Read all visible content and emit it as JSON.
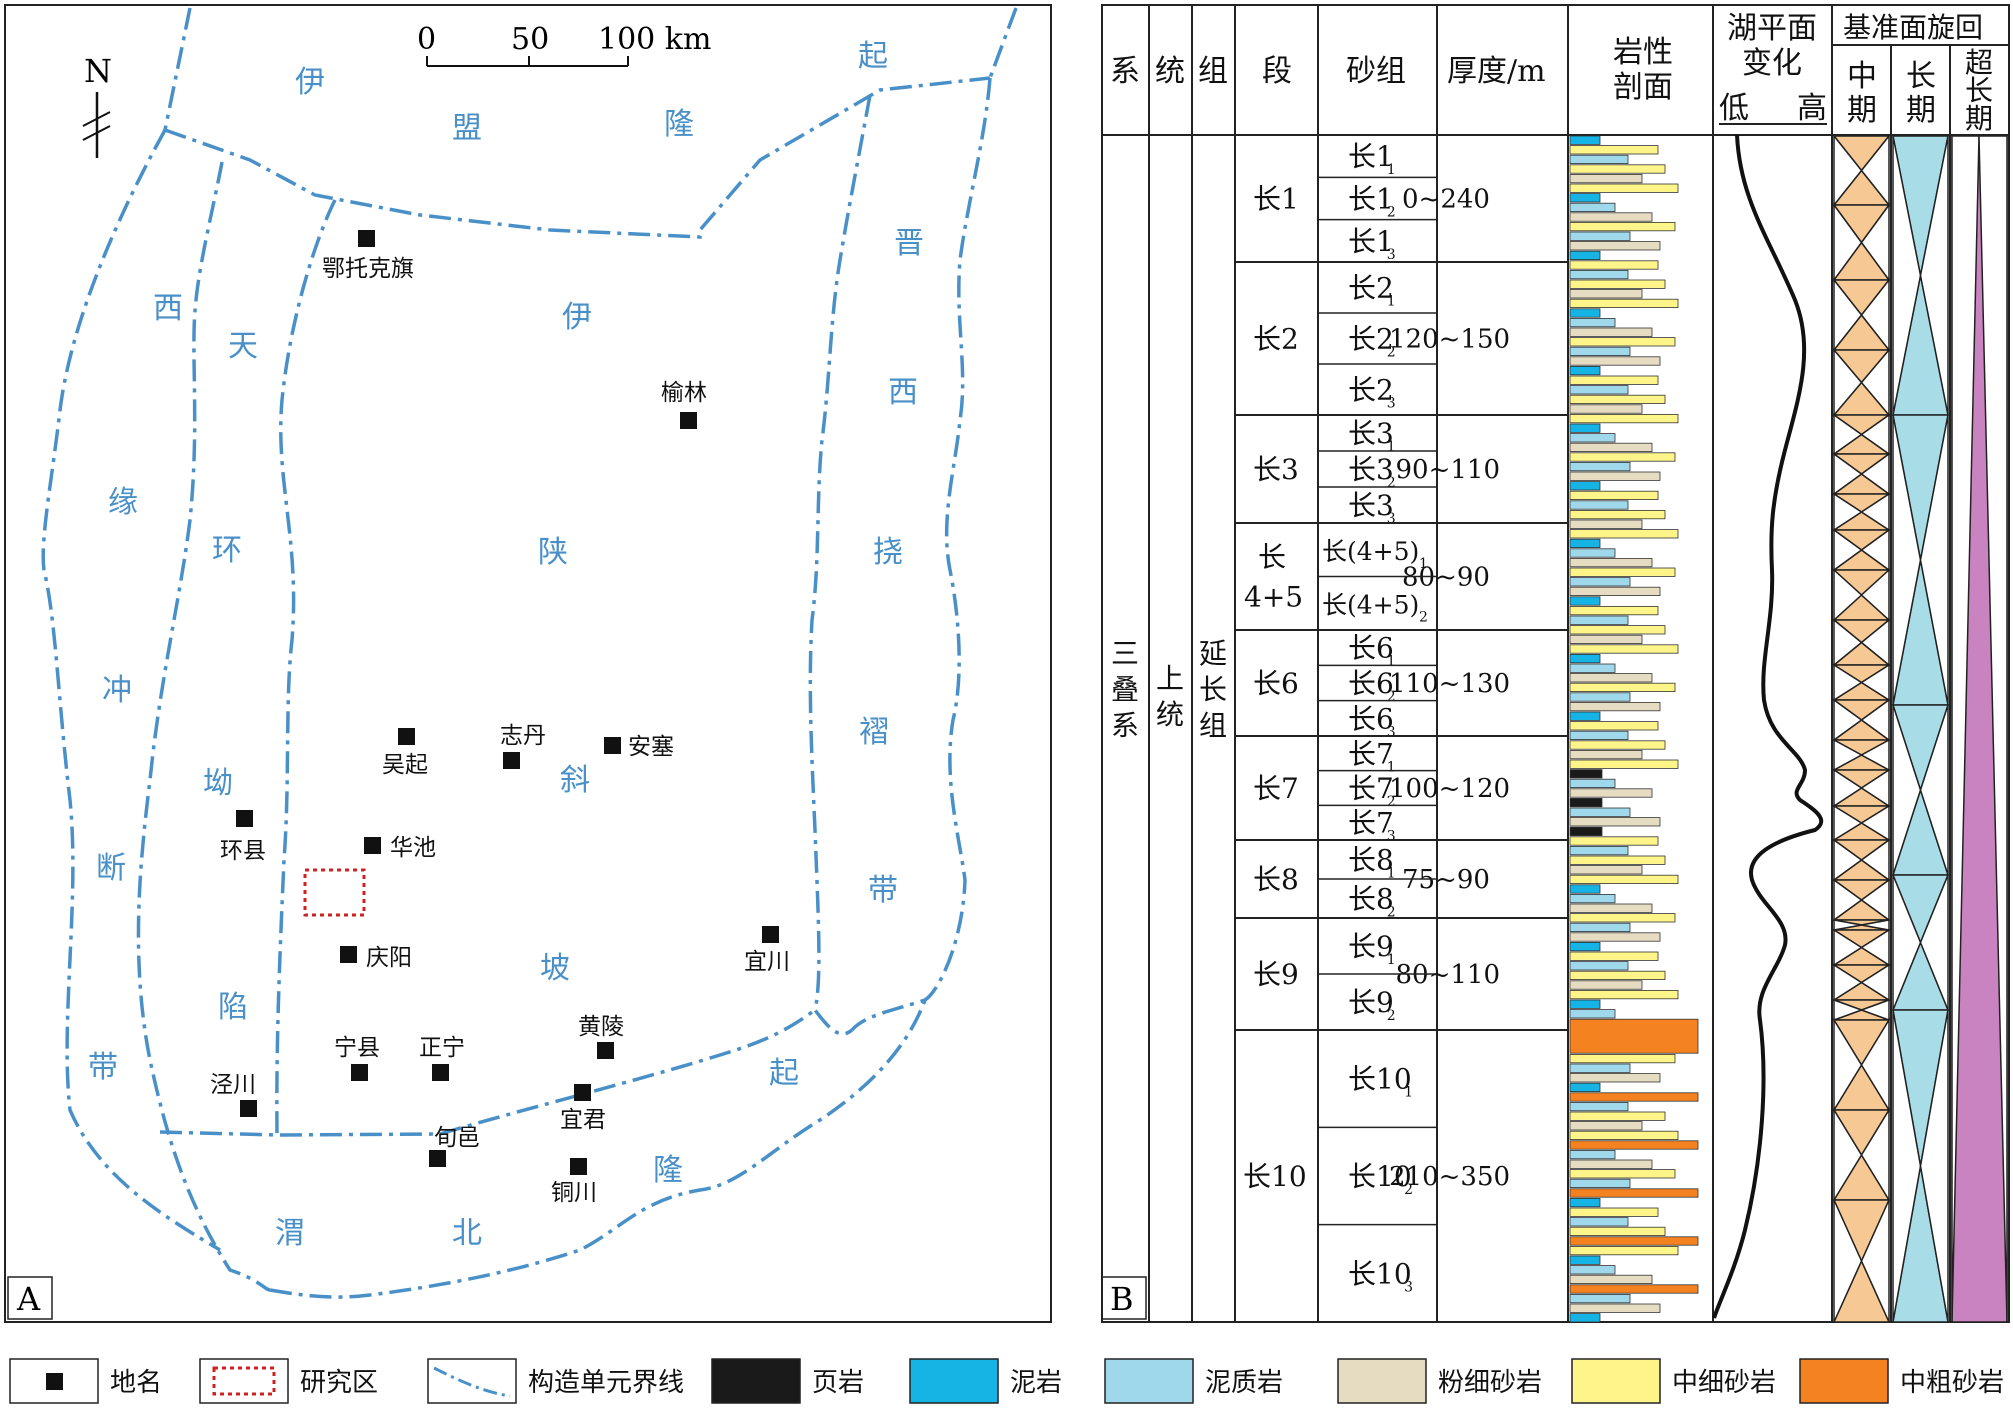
{
  "panel_a": {
    "label": "A",
    "north": "N",
    "scale": {
      "ticks": [
        "0",
        "50",
        "100 km"
      ]
    },
    "units": [
      {
        "text": "伊",
        "name": "yimeng-uplift-char-1"
      },
      {
        "text": "盟",
        "name": "yimeng-uplift-char-2"
      },
      {
        "text": "隆",
        "name": "yimeng-uplift-char-3"
      },
      {
        "text": "起",
        "name": "yimeng-uplift-char-4"
      },
      {
        "text": "西",
        "name": "west-margin-char-1"
      },
      {
        "text": "缘",
        "name": "west-margin-char-2"
      },
      {
        "text": "冲",
        "name": "west-margin-char-3"
      },
      {
        "text": "断",
        "name": "west-margin-char-4"
      },
      {
        "text": "带",
        "name": "west-margin-char-5"
      },
      {
        "text": "天",
        "name": "tianhuan-char-1"
      },
      {
        "text": "环",
        "name": "tianhuan-char-2"
      },
      {
        "text": "坳",
        "name": "tianhuan-char-3"
      },
      {
        "text": "陷",
        "name": "tianhuan-char-4"
      },
      {
        "text": "伊",
        "name": "yishan-slope-char-1"
      },
      {
        "text": "陕",
        "name": "yishan-slope-char-2"
      },
      {
        "text": "斜",
        "name": "yishan-slope-char-3"
      },
      {
        "text": "坡",
        "name": "yishan-slope-char-4"
      },
      {
        "text": "晋",
        "name": "jinxi-char-1"
      },
      {
        "text": "西",
        "name": "jinxi-char-2"
      },
      {
        "text": "挠",
        "name": "jinxi-char-3"
      },
      {
        "text": "褶",
        "name": "jinxi-char-4"
      },
      {
        "text": "带",
        "name": "jinxi-char-5"
      },
      {
        "text": "渭",
        "name": "weibei-char-1"
      },
      {
        "text": "北",
        "name": "weibei-char-2"
      },
      {
        "text": "隆",
        "name": "weibei-char-3"
      },
      {
        "text": "起",
        "name": "weibei-char-4"
      }
    ],
    "places": [
      "鄂托克旗",
      "榆林",
      "吴起",
      "志丹",
      "安塞",
      "环县",
      "华池",
      "庆阳",
      "宜川",
      "黄陵",
      "宁县",
      "正宁",
      "泾川",
      "宜君",
      "旬邑",
      "铜川"
    ]
  },
  "panel_b": {
    "label": "B",
    "headers": {
      "xi": "系",
      "tong": "统",
      "zu": "组",
      "duan": "段",
      "shazu": "砂组",
      "houdu": "厚度/m",
      "yanxing": [
        "岩性",
        "剖面"
      ],
      "hupingmian": [
        "湖平面",
        "变化"
      ],
      "low": "低",
      "high": "高",
      "cycle_title": "基准面旋回",
      "mid": [
        "中",
        "期"
      ],
      "long": [
        "长",
        "期"
      ],
      "super": [
        "超",
        "长",
        "期"
      ]
    },
    "system": [
      "三",
      "叠",
      "系"
    ],
    "series": [
      "上",
      "统"
    ],
    "formation": [
      "延",
      "长",
      "组"
    ],
    "members": [
      {
        "name": "长1",
        "thickness": "0~240",
        "sands": [
          {
            "base": "长1",
            "sub": "1"
          },
          {
            "base": "长1",
            "sub": "2"
          },
          {
            "base": "长1",
            "sub": "3"
          }
        ]
      },
      {
        "name": "长2",
        "thickness": "120~150",
        "sands": [
          {
            "base": "长2",
            "sub": "1"
          },
          {
            "base": "长2",
            "sub": "2"
          },
          {
            "base": "长2",
            "sub": "3"
          }
        ]
      },
      {
        "name": "长3",
        "thickness": "90~110",
        "sands": [
          {
            "base": "长3",
            "sub": "1"
          },
          {
            "base": "长3",
            "sub": "2"
          },
          {
            "base": "长3",
            "sub": "3"
          }
        ]
      },
      {
        "name": "长",
        "name2": "4+5",
        "thickness": "80~90",
        "sands": [
          {
            "base": "长(4+5)",
            "sub": "1"
          },
          {
            "base": "长(4+5)",
            "sub": "2"
          }
        ]
      },
      {
        "name": "长6",
        "thickness": "110~130",
        "sands": [
          {
            "base": "长6",
            "sub": "1"
          },
          {
            "base": "长6",
            "sub": "2"
          },
          {
            "base": "长6",
            "sub": "3"
          }
        ]
      },
      {
        "name": "长7",
        "thickness": "100~120",
        "sands": [
          {
            "base": "长7",
            "sub": "1"
          },
          {
            "base": "长7",
            "sub": "2"
          },
          {
            "base": "长7",
            "sub": "3"
          }
        ]
      },
      {
        "name": "长8",
        "thickness": "75~90",
        "sands": [
          {
            "base": "长8",
            "sub": "1"
          },
          {
            "base": "长8",
            "sub": "2"
          }
        ]
      },
      {
        "name": "长9",
        "thickness": "80~110",
        "sands": [
          {
            "base": "长9",
            "sub": "1"
          },
          {
            "base": "长9",
            "sub": "2"
          }
        ]
      },
      {
        "name": "长10",
        "thickness": "210~350",
        "sands": [
          {
            "base": "长10",
            "sub": "1"
          },
          {
            "base": "长10",
            "sub": "2"
          },
          {
            "base": "长10",
            "sub": "3"
          }
        ]
      }
    ]
  },
  "legend": [
    {
      "label": "地名",
      "kind": "place",
      "color": "#111111"
    },
    {
      "label": "研究区",
      "kind": "study",
      "color": "#cc2222"
    },
    {
      "label": "构造单元界线",
      "kind": "boundary",
      "color": "#4a90c8"
    },
    {
      "label": "页岩",
      "kind": "fill",
      "color": "#1a1a1a"
    },
    {
      "label": "泥岩",
      "kind": "fill",
      "color": "#16b4e4"
    },
    {
      "label": "泥质岩",
      "kind": "fill",
      "color": "#9fd8ea"
    },
    {
      "label": "粉细砂岩",
      "kind": "fill",
      "color": "#e6dcc2"
    },
    {
      "label": "中细砂岩",
      "kind": "fill",
      "color": "#fdf58a"
    },
    {
      "label": "中粗砂岩",
      "kind": "fill",
      "color": "#f58220"
    }
  ],
  "colors": {
    "boundary": "#4a90c8",
    "shale": "#1a1a1a",
    "mudstone": "#16b4e4",
    "argillite": "#9fd8ea",
    "silty": "#e6dcc2",
    "medfine": "#fdf58a",
    "medcoarse": "#f58220",
    "cycle_mid": "#f5c894",
    "cycle_long": "#a8dde8",
    "cycle_super": "#c983c0"
  }
}
